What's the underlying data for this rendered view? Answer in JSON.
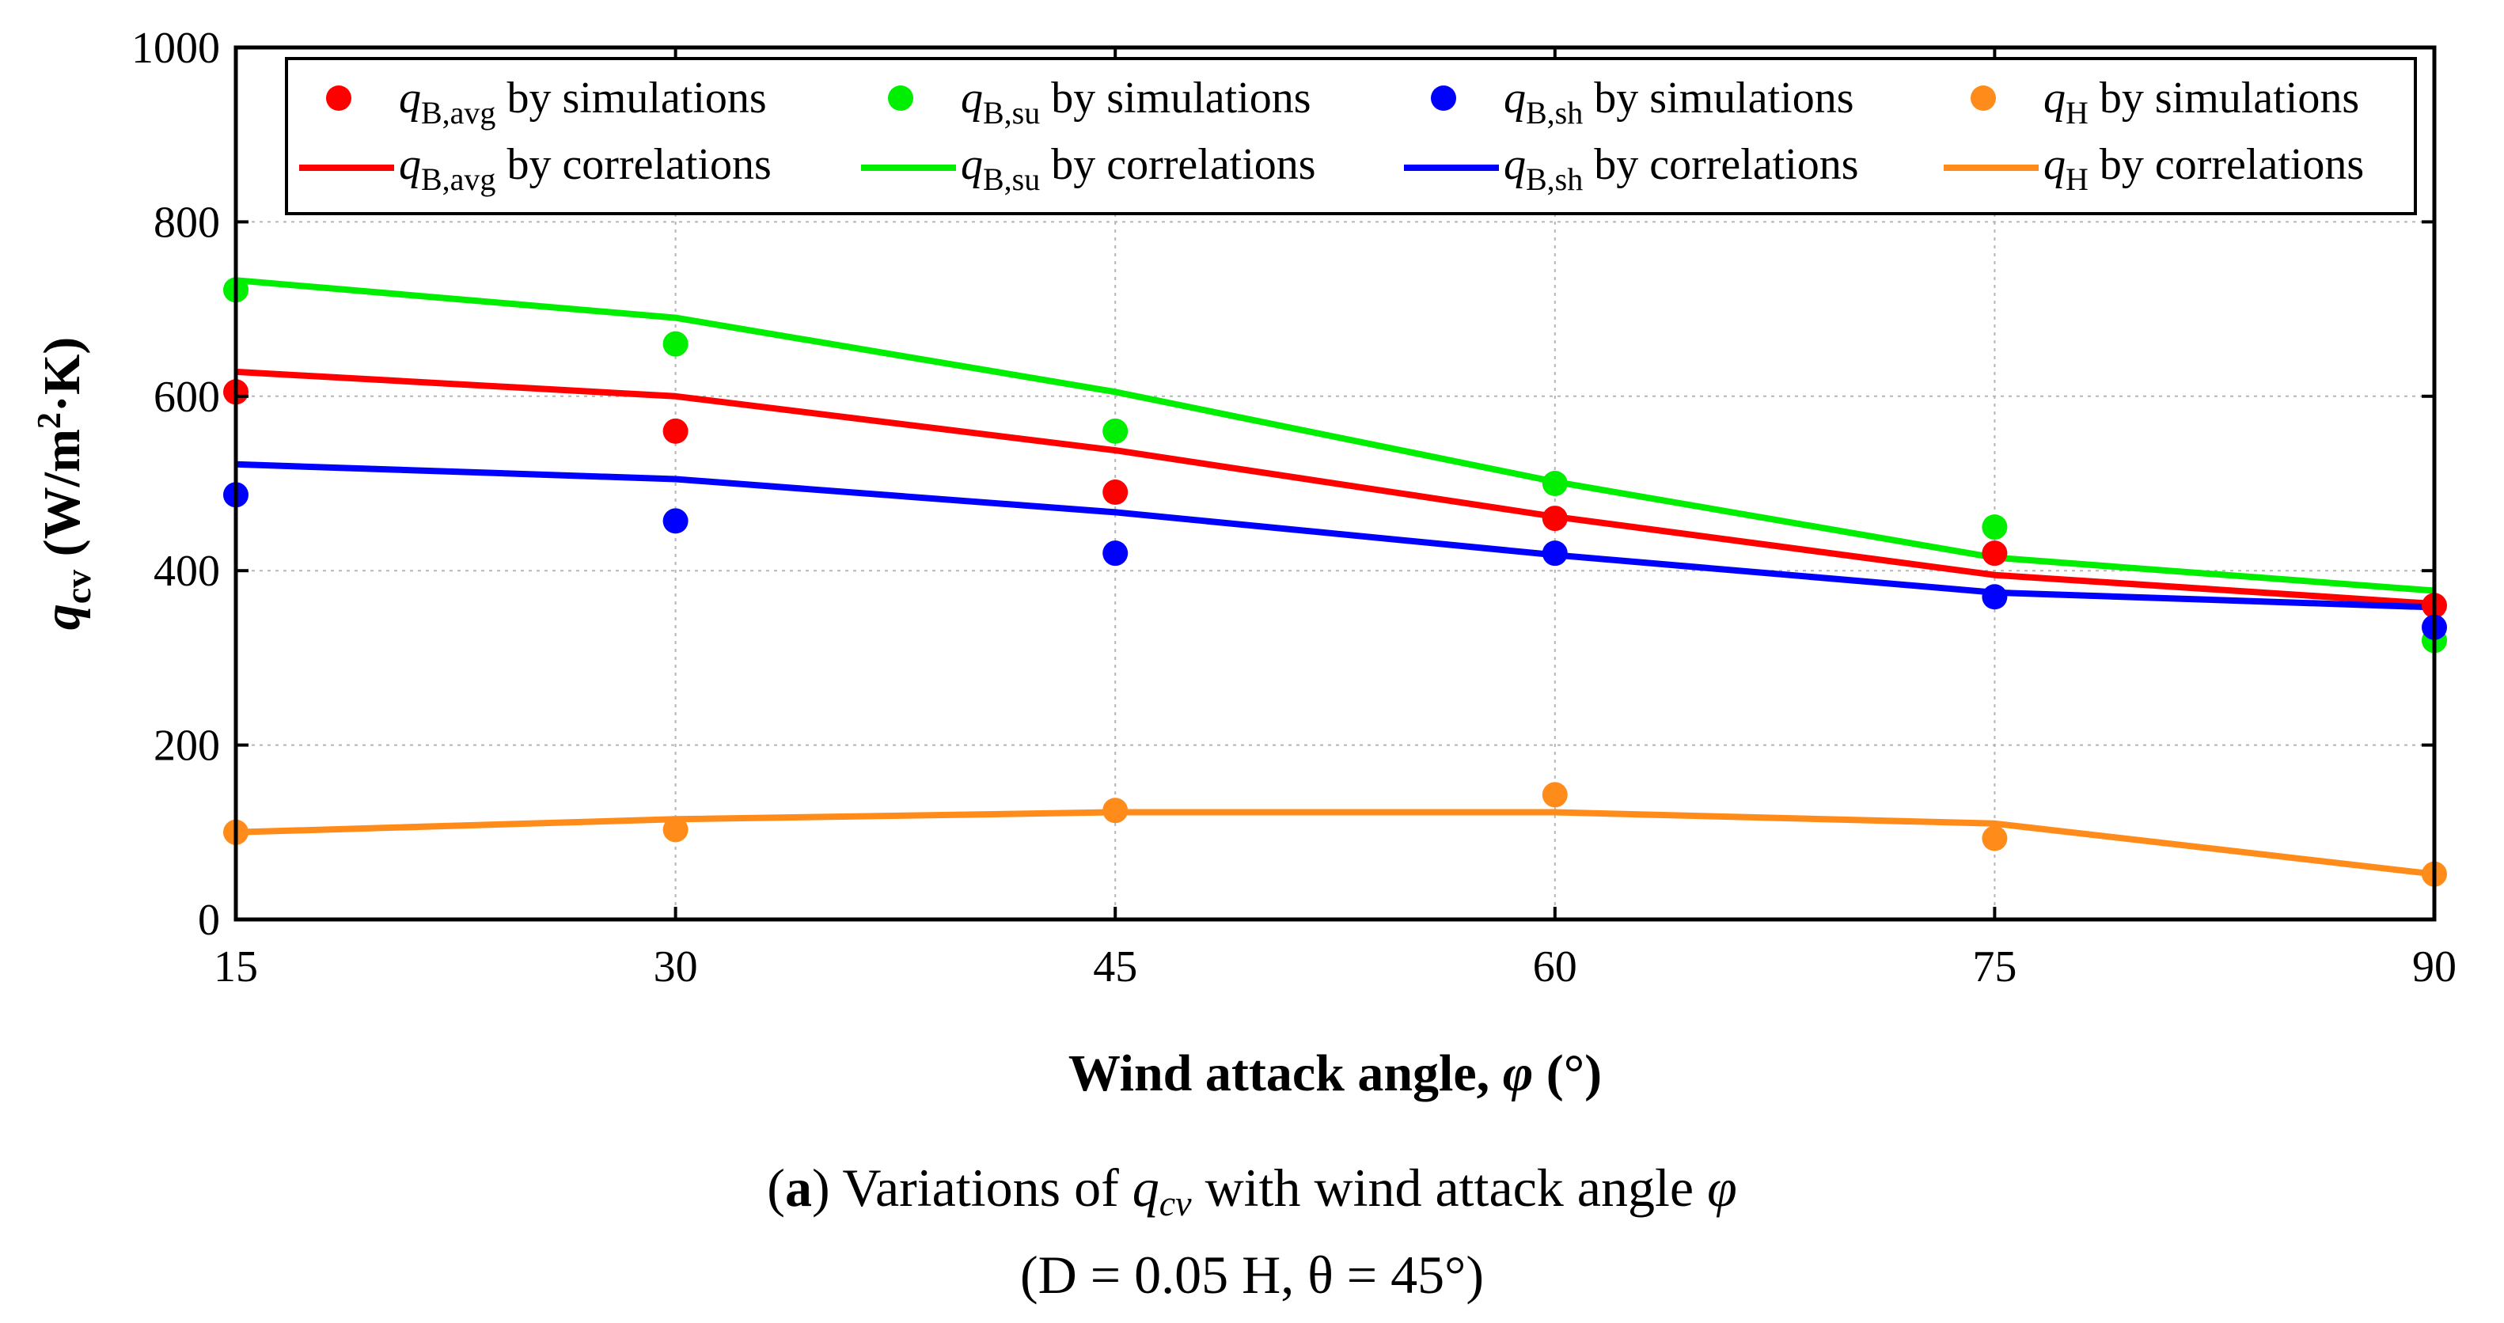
{
  "chart_data": {
    "type": "line",
    "title": "",
    "xlabel_prefix": "Wind attack angle, ",
    "xlabel_symbol": "φ",
    "xlabel_suffix": " (°)",
    "ylabel_main": "q",
    "ylabel_sub": "cv",
    "ylabel_unit_a": " (W/m",
    "ylabel_unit_sup": "2",
    "ylabel_unit_b": "·K)",
    "x": [
      15,
      30,
      45,
      60,
      75,
      90
    ],
    "xlim": [
      15,
      90
    ],
    "ylim": [
      0,
      1000
    ],
    "xticks": [
      "15",
      "30",
      "45",
      "60",
      "75",
      "90"
    ],
    "yticks": [
      "0",
      "200",
      "400",
      "600",
      "800",
      "1000"
    ],
    "grid": true,
    "legend_position": "top",
    "series": [
      {
        "id": "bavg",
        "name_sub": "B,avg",
        "kind": "simulations",
        "color": "#ff0000",
        "values": [
          605,
          560,
          490,
          460,
          420,
          360
        ]
      },
      {
        "id": "bsu",
        "name_sub": "B,su",
        "kind": "simulations",
        "color": "#00ee00",
        "values": [
          722,
          660,
          560,
          500,
          450,
          320
        ]
      },
      {
        "id": "bsh",
        "name_sub": "B,sh",
        "kind": "simulations",
        "color": "#0000ff",
        "values": [
          487,
          457,
          420,
          420,
          370,
          335
        ]
      },
      {
        "id": "h",
        "name_sub": "H",
        "kind": "simulations",
        "color": "#ff8c1a",
        "values": [
          100,
          103,
          125,
          143,
          93,
          52
        ]
      },
      {
        "id": "bavg",
        "name_sub": "B,avg",
        "kind": "correlations",
        "color": "#ff0000",
        "values": [
          628,
          600,
          538,
          462,
          395,
          362
        ]
      },
      {
        "id": "bsu",
        "name_sub": "B,su",
        "kind": "correlations",
        "color": "#00ee00",
        "values": [
          733,
          690,
          605,
          502,
          415,
          377
        ]
      },
      {
        "id": "bsh",
        "name_sub": "B,sh",
        "kind": "correlations",
        "color": "#0000ff",
        "values": [
          522,
          505,
          467,
          418,
          375,
          358
        ]
      },
      {
        "id": "h",
        "name_sub": "H",
        "kind": "correlations",
        "color": "#ff8c1a",
        "values": [
          100,
          115,
          123,
          123,
          110,
          52
        ]
      }
    ],
    "legend_prefix": "q",
    "legend_sim_text": " by simulations",
    "legend_corr_text": " by correlations"
  },
  "caption": {
    "line1_open": "(",
    "line1_bold": "a",
    "line1_text": ") Variations of ",
    "line1_q": "q",
    "line1_q_sub": "cv",
    "line1_text2": " with wind attack angle ",
    "line1_phi": "φ",
    "line2": "(D = 0.05 H, θ = 45°)"
  }
}
